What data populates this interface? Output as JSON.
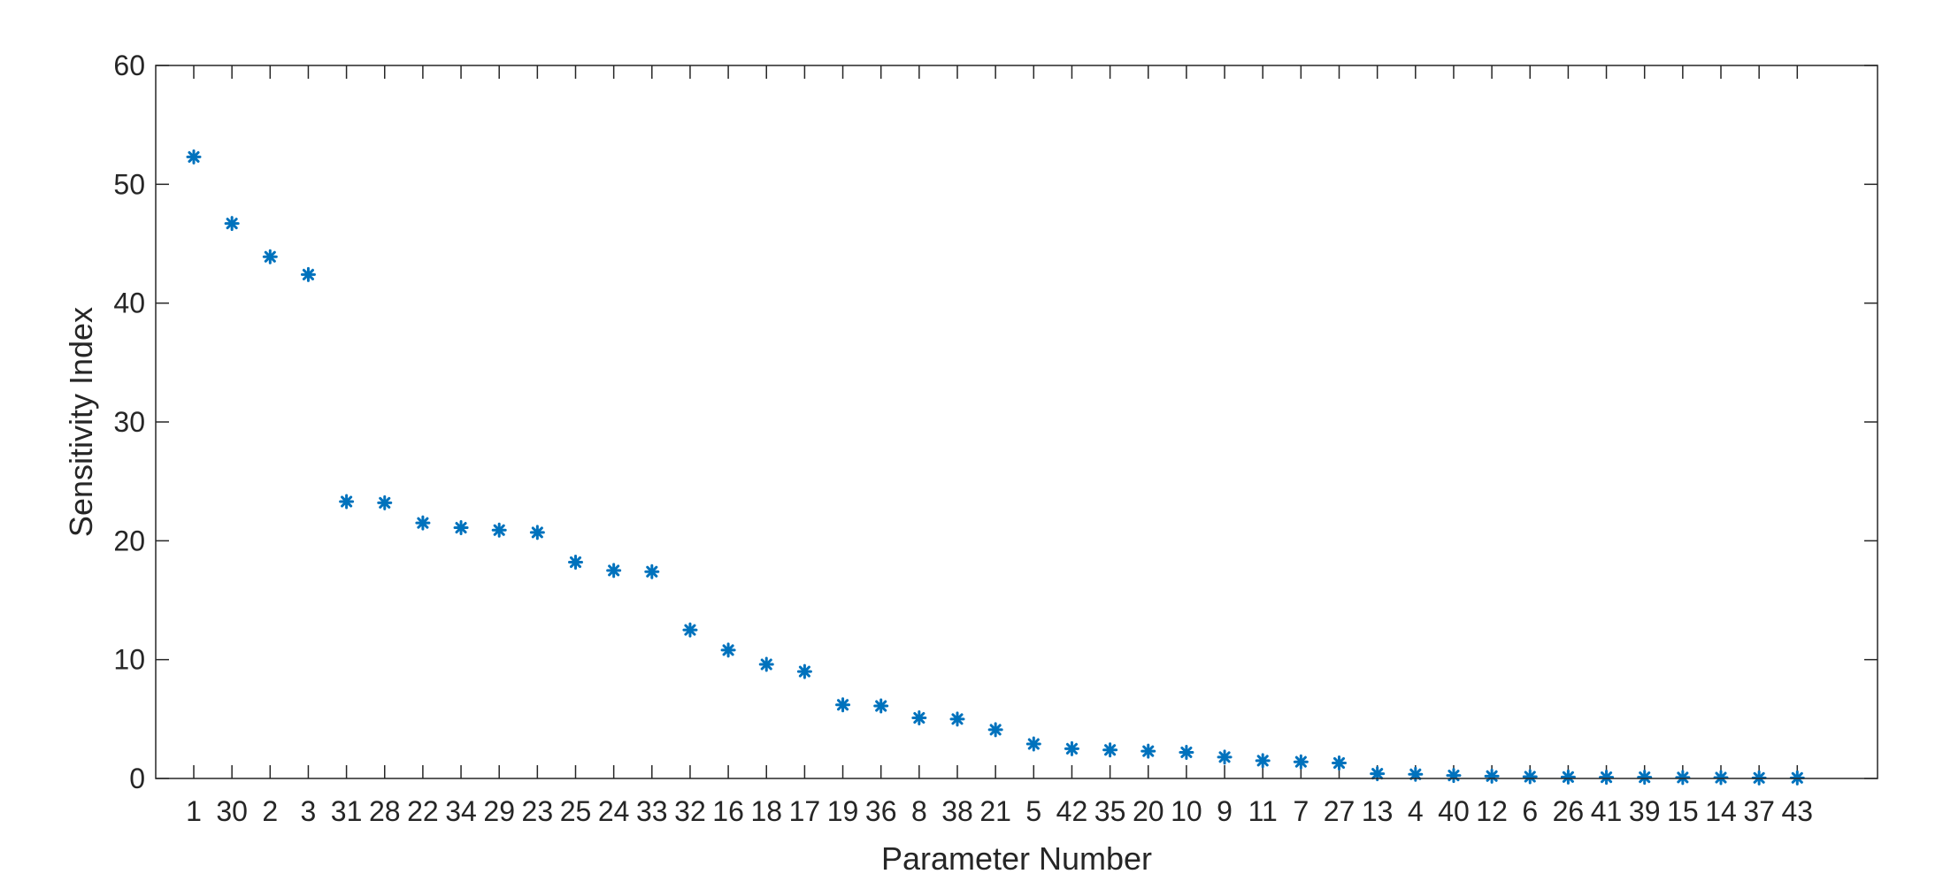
{
  "chart_data": {
    "type": "scatter",
    "marker": "asterisk",
    "marker_color": "#0072BD",
    "xlabel": "Parameter Number",
    "ylabel": "Sensitivity Index",
    "ylim": [
      0,
      60
    ],
    "yticks": [
      "0",
      "10",
      "20",
      "30",
      "40",
      "50",
      "60"
    ],
    "grid": false,
    "x_tick_labels": [
      "1",
      "30",
      "2",
      "3",
      "31",
      "28",
      "22",
      "34",
      "29",
      "23",
      "25",
      "24",
      "33",
      "32",
      "16",
      "18",
      "17",
      "19",
      "36",
      "8",
      "38",
      "21",
      "5",
      "42",
      "35",
      "20",
      "10",
      "9",
      "11",
      "7",
      "27",
      "13",
      "4",
      "40",
      "12",
      "6",
      "26",
      "41",
      "39",
      "15",
      "14",
      "37",
      "43"
    ],
    "values": [
      52.3,
      46.7,
      43.9,
      42.4,
      23.3,
      23.2,
      21.5,
      21.1,
      20.9,
      20.7,
      18.2,
      17.5,
      17.4,
      12.5,
      10.8,
      9.6,
      9.0,
      6.2,
      6.1,
      5.1,
      5.0,
      4.1,
      2.9,
      2.5,
      2.4,
      2.3,
      2.2,
      1.8,
      1.5,
      1.4,
      1.3,
      0.4,
      0.35,
      0.25,
      0.2,
      0.15,
      0.12,
      0.1,
      0.1,
      0.08,
      0.07,
      0.05,
      0.05
    ]
  }
}
